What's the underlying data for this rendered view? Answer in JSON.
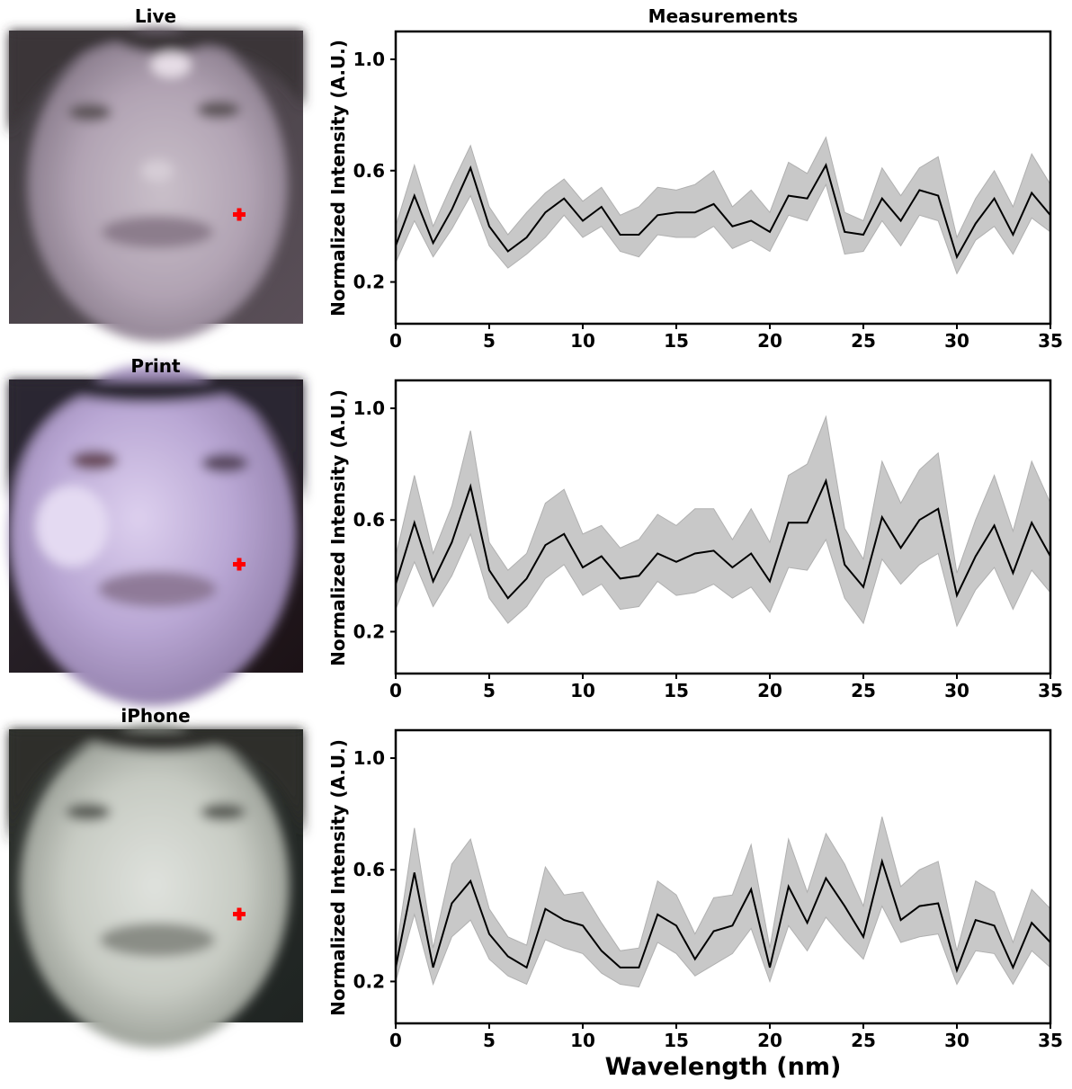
{
  "photo_titles": [
    "Live",
    "Print",
    "iPhone"
  ],
  "plot_title": "Measurements",
  "ylabel": "Normalized Intensity (A.U.)",
  "xlabel": "Wavelength (nm)",
  "marker_color": "#ff0000",
  "band_color": "#c8c8c8",
  "line_color": "#000000",
  "chart_data": [
    {
      "type": "line",
      "title": "Measurements",
      "xlabel": "",
      "ylabel": "Normalized Intensity (A.U.)",
      "xlim": [
        0,
        35
      ],
      "ylim": [
        0.05,
        1.1
      ],
      "xticks": [
        0,
        5,
        10,
        15,
        20,
        25,
        30,
        35
      ],
      "yticks": [
        0.2,
        0.6,
        1.0
      ],
      "x": [
        0,
        1,
        2,
        3,
        4,
        5,
        6,
        7,
        8,
        9,
        10,
        11,
        12,
        13,
        14,
        15,
        16,
        17,
        18,
        19,
        20,
        21,
        22,
        23,
        24,
        25,
        26,
        27,
        28,
        29,
        30,
        31,
        32,
        33,
        34,
        35
      ],
      "series": [
        {
          "mean": [
            0.33,
            0.51,
            0.34,
            0.46,
            0.61,
            0.4,
            0.31,
            0.36,
            0.45,
            0.5,
            0.42,
            0.47,
            0.37,
            0.37,
            0.44,
            0.45,
            0.45,
            0.48,
            0.4,
            0.42,
            0.38,
            0.51,
            0.5,
            0.62,
            0.38,
            0.37,
            0.5,
            0.42,
            0.53,
            0.51,
            0.29,
            0.41,
            0.5,
            0.37,
            0.52,
            0.44
          ],
          "upper": [
            0.4,
            0.62,
            0.4,
            0.55,
            0.69,
            0.47,
            0.37,
            0.45,
            0.52,
            0.57,
            0.49,
            0.54,
            0.44,
            0.47,
            0.54,
            0.53,
            0.55,
            0.6,
            0.47,
            0.53,
            0.45,
            0.63,
            0.59,
            0.72,
            0.45,
            0.42,
            0.61,
            0.51,
            0.61,
            0.65,
            0.36,
            0.5,
            0.6,
            0.47,
            0.66,
            0.55
          ],
          "lower": [
            0.27,
            0.42,
            0.29,
            0.39,
            0.51,
            0.33,
            0.25,
            0.3,
            0.36,
            0.44,
            0.36,
            0.4,
            0.31,
            0.29,
            0.37,
            0.36,
            0.36,
            0.4,
            0.32,
            0.35,
            0.31,
            0.44,
            0.42,
            0.55,
            0.3,
            0.31,
            0.42,
            0.33,
            0.44,
            0.42,
            0.23,
            0.35,
            0.4,
            0.3,
            0.43,
            0.38
          ]
        }
      ]
    },
    {
      "type": "line",
      "xlabel": "",
      "ylabel": "Normalized Intensity (A.U.)",
      "xlim": [
        0,
        35
      ],
      "ylim": [
        0.05,
        1.1
      ],
      "xticks": [
        0,
        5,
        10,
        15,
        20,
        25,
        30,
        35
      ],
      "yticks": [
        0.2,
        0.6,
        1.0
      ],
      "x": [
        0,
        1,
        2,
        3,
        4,
        5,
        6,
        7,
        8,
        9,
        10,
        11,
        12,
        13,
        14,
        15,
        16,
        17,
        18,
        19,
        20,
        21,
        22,
        23,
        24,
        25,
        26,
        27,
        28,
        29,
        30,
        31,
        32,
        33,
        34,
        35
      ],
      "series": [
        {
          "mean": [
            0.37,
            0.59,
            0.38,
            0.52,
            0.72,
            0.42,
            0.32,
            0.39,
            0.51,
            0.55,
            0.43,
            0.47,
            0.39,
            0.4,
            0.48,
            0.45,
            0.48,
            0.49,
            0.43,
            0.48,
            0.38,
            0.59,
            0.59,
            0.74,
            0.44,
            0.36,
            0.61,
            0.5,
            0.6,
            0.64,
            0.33,
            0.47,
            0.58,
            0.41,
            0.59,
            0.47
          ],
          "upper": [
            0.47,
            0.76,
            0.48,
            0.65,
            0.92,
            0.52,
            0.42,
            0.48,
            0.66,
            0.71,
            0.55,
            0.58,
            0.5,
            0.53,
            0.62,
            0.58,
            0.64,
            0.64,
            0.53,
            0.64,
            0.52,
            0.76,
            0.8,
            0.97,
            0.57,
            0.46,
            0.81,
            0.66,
            0.78,
            0.84,
            0.41,
            0.6,
            0.76,
            0.56,
            0.81,
            0.66
          ],
          "lower": [
            0.28,
            0.45,
            0.29,
            0.4,
            0.55,
            0.32,
            0.23,
            0.29,
            0.39,
            0.44,
            0.33,
            0.37,
            0.28,
            0.29,
            0.38,
            0.33,
            0.34,
            0.37,
            0.32,
            0.36,
            0.27,
            0.43,
            0.42,
            0.53,
            0.32,
            0.23,
            0.46,
            0.37,
            0.44,
            0.48,
            0.22,
            0.35,
            0.43,
            0.28,
            0.42,
            0.34
          ]
        }
      ]
    },
    {
      "type": "line",
      "xlabel": "Wavelength (nm)",
      "ylabel": "Normalized Intensity (A.U.)",
      "xlim": [
        0,
        35
      ],
      "ylim": [
        0.05,
        1.1
      ],
      "xticks": [
        0,
        5,
        10,
        15,
        20,
        25,
        30,
        35
      ],
      "yticks": [
        0.2,
        0.6,
        1.0
      ],
      "x": [
        0,
        1,
        2,
        3,
        4,
        5,
        6,
        7,
        8,
        9,
        10,
        11,
        12,
        13,
        14,
        15,
        16,
        17,
        18,
        19,
        20,
        21,
        22,
        23,
        24,
        25,
        26,
        27,
        28,
        29,
        30,
        31,
        32,
        33,
        34,
        35
      ],
      "series": [
        {
          "mean": [
            0.25,
            0.59,
            0.25,
            0.48,
            0.56,
            0.37,
            0.29,
            0.25,
            0.46,
            0.42,
            0.4,
            0.31,
            0.25,
            0.25,
            0.44,
            0.4,
            0.28,
            0.38,
            0.4,
            0.53,
            0.25,
            0.54,
            0.41,
            0.57,
            0.47,
            0.36,
            0.63,
            0.42,
            0.47,
            0.48,
            0.24,
            0.42,
            0.4,
            0.25,
            0.41,
            0.34
          ],
          "upper": [
            0.3,
            0.75,
            0.32,
            0.62,
            0.71,
            0.46,
            0.36,
            0.33,
            0.61,
            0.51,
            0.52,
            0.41,
            0.31,
            0.32,
            0.56,
            0.51,
            0.37,
            0.5,
            0.51,
            0.69,
            0.32,
            0.71,
            0.52,
            0.73,
            0.62,
            0.47,
            0.79,
            0.54,
            0.6,
            0.63,
            0.31,
            0.56,
            0.52,
            0.34,
            0.53,
            0.46
          ],
          "lower": [
            0.2,
            0.44,
            0.19,
            0.36,
            0.42,
            0.28,
            0.22,
            0.19,
            0.35,
            0.32,
            0.3,
            0.23,
            0.19,
            0.18,
            0.34,
            0.3,
            0.22,
            0.26,
            0.3,
            0.39,
            0.2,
            0.4,
            0.31,
            0.43,
            0.35,
            0.28,
            0.47,
            0.34,
            0.36,
            0.37,
            0.19,
            0.31,
            0.3,
            0.19,
            0.31,
            0.25
          ]
        }
      ]
    }
  ]
}
